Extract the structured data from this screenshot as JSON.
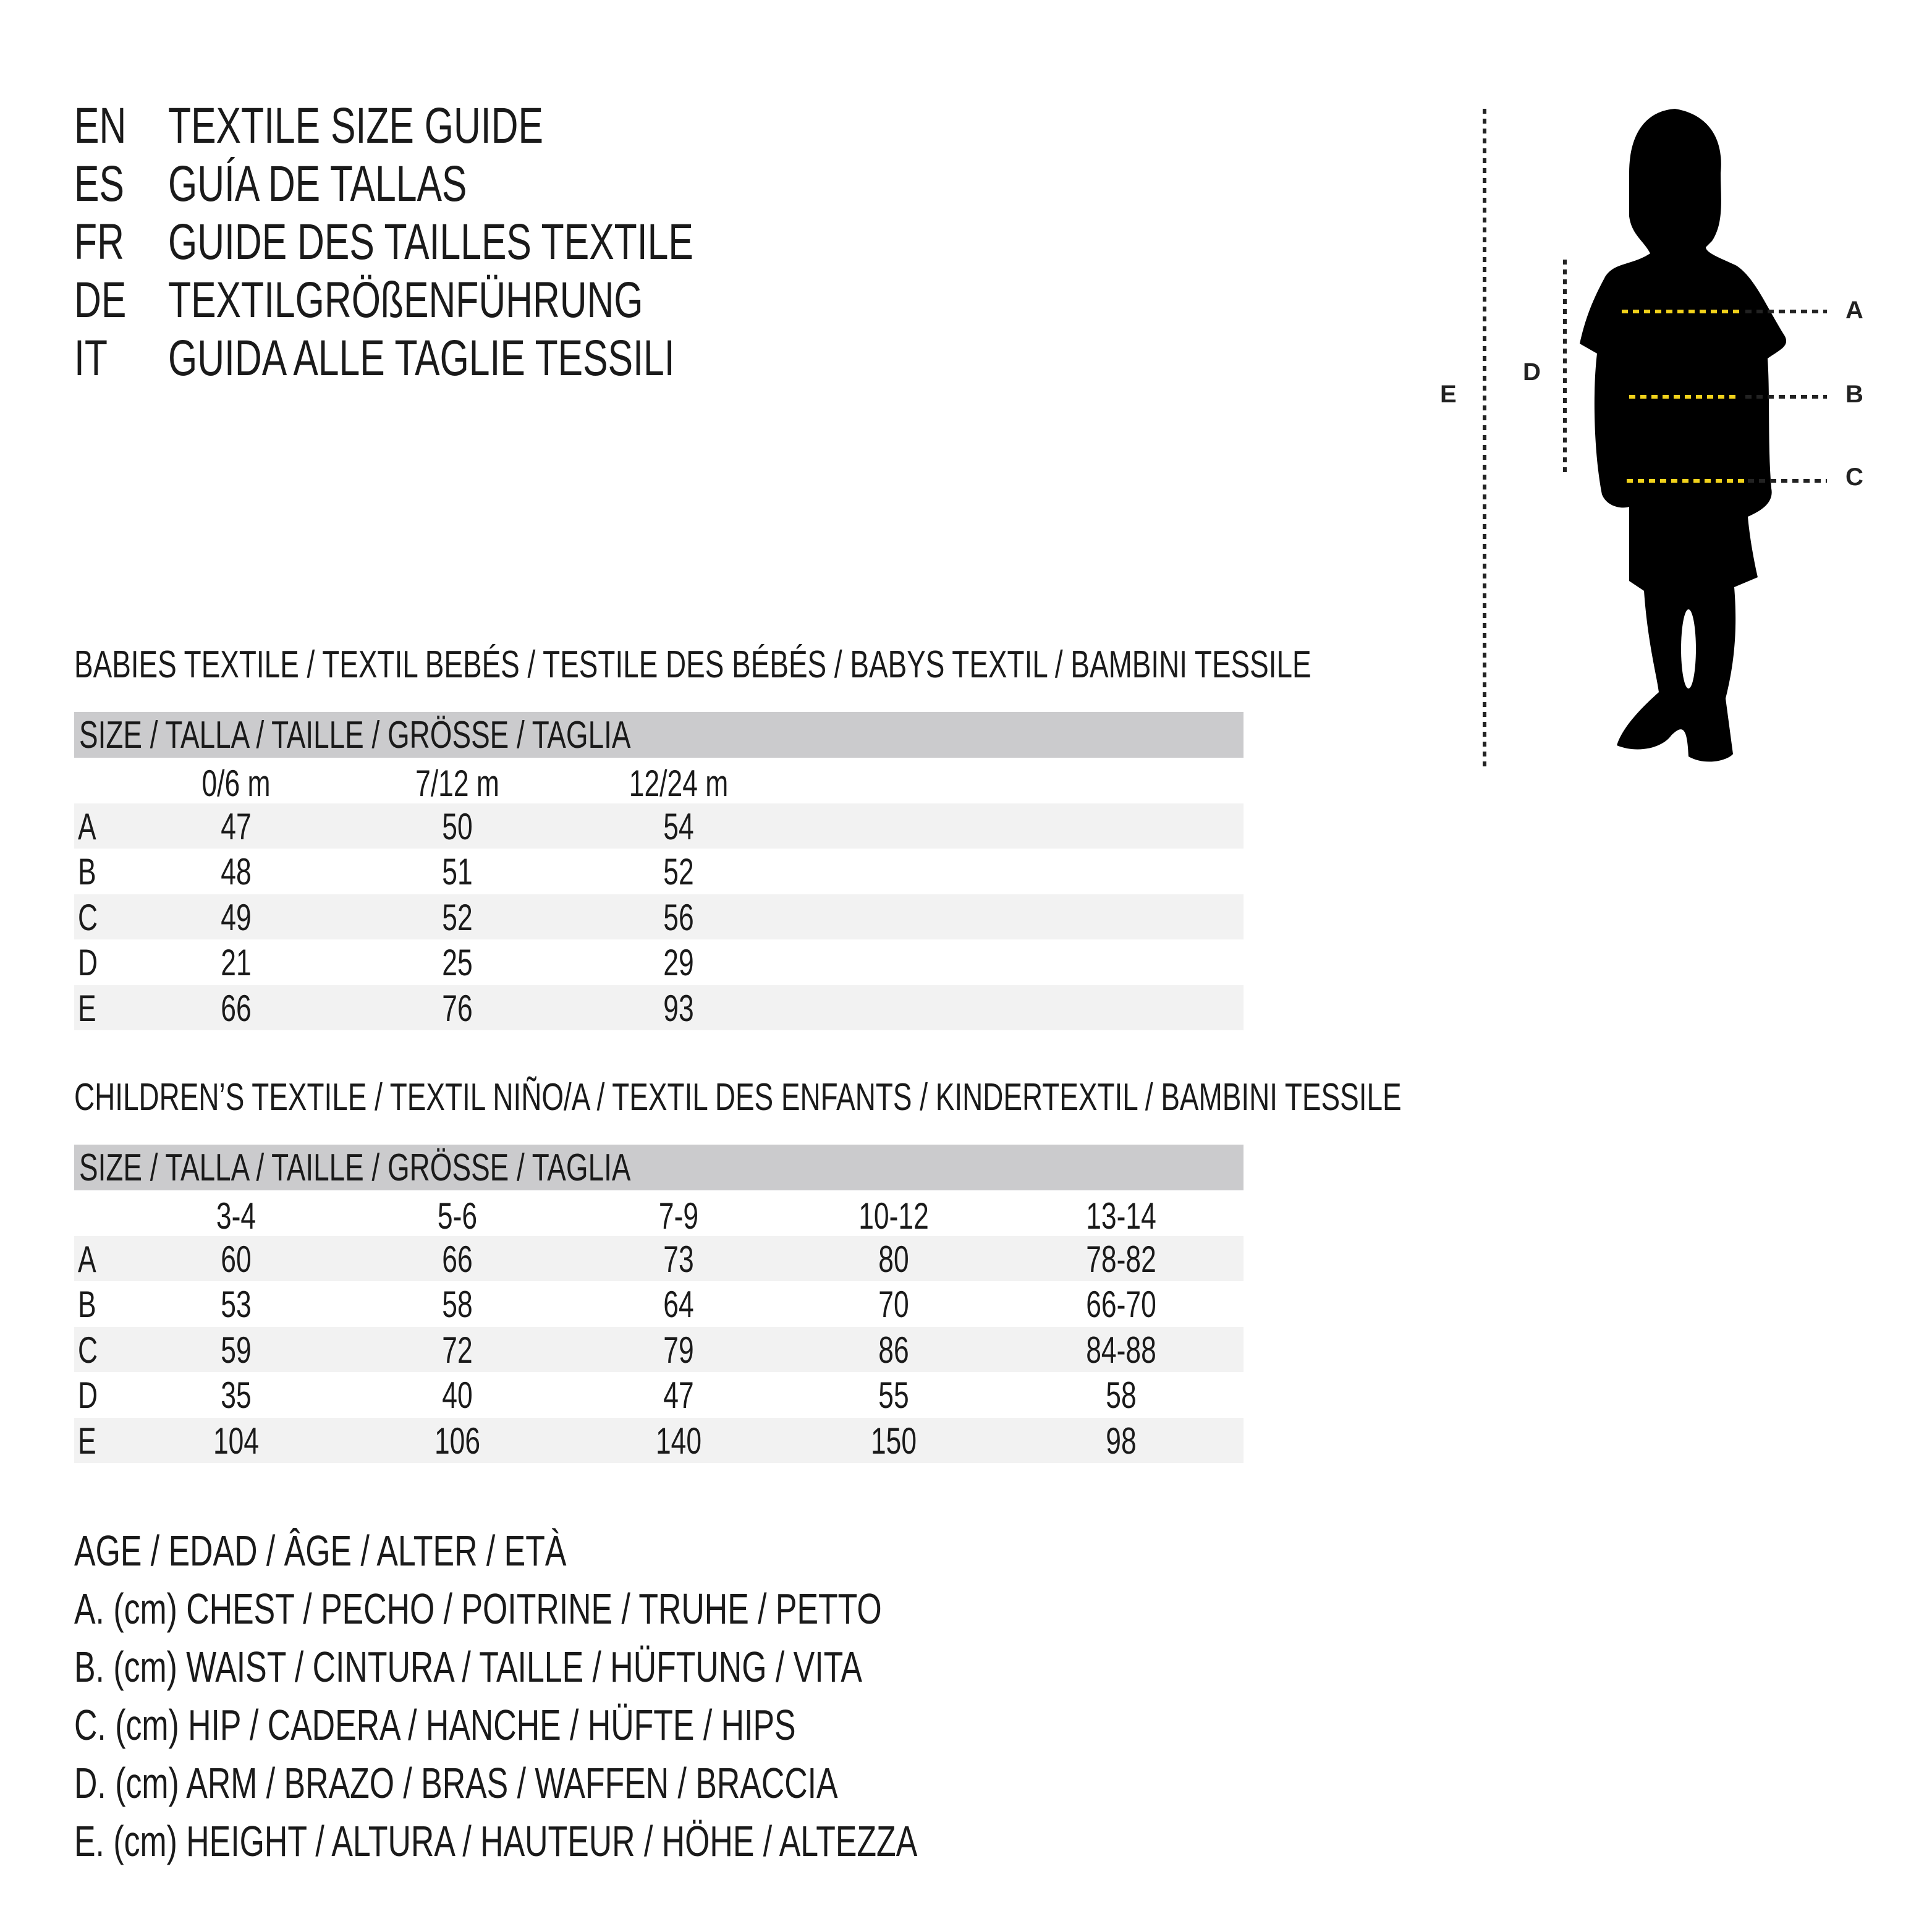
{
  "titles": [
    {
      "code": "EN",
      "text": "TEXTILE SIZE GUIDE"
    },
    {
      "code": "ES",
      "text": "GUÍA DE TALLAS"
    },
    {
      "code": "FR",
      "text": "GUIDE DES TAILLES TEXTILE"
    },
    {
      "code": "DE",
      "text": "TEXTILGRÖßENFÜHRUNG"
    },
    {
      "code": "IT",
      "text": "GUIDA ALLE TAGLIE TESSILI"
    }
  ],
  "babies": {
    "heading": "BABIES TEXTILE / TEXTIL BEBÉS / TESTILE DES BÉBÉS / BABYS TEXTIL / BAMBINI TESSILE",
    "size_header": "SIZE / TALLA / TAILLE / GRÖSSE / TAGLIA",
    "columns": [
      "0/6 m",
      "7/12 m",
      "12/24 m"
    ],
    "rows": [
      {
        "label": "A",
        "values": [
          "47",
          "50",
          "54"
        ]
      },
      {
        "label": "B",
        "values": [
          "48",
          "51",
          "52"
        ]
      },
      {
        "label": "C",
        "values": [
          "49",
          "52",
          "56"
        ]
      },
      {
        "label": "D",
        "values": [
          "21",
          "25",
          "29"
        ]
      },
      {
        "label": "E",
        "values": [
          "66",
          "76",
          "93"
        ]
      }
    ]
  },
  "children": {
    "heading": "CHILDREN’S TEXTILE / TEXTIL NIÑO/A / TEXTIL DES ENFANTS / KINDERTEXTIL / BAMBINI TESSILE",
    "size_header": "SIZE / TALLA / TAILLE / GRÖSSE / TAGLIA",
    "columns": [
      "3-4",
      "5-6",
      "7-9",
      "10-12",
      "13-14"
    ],
    "rows": [
      {
        "label": "A",
        "values": [
          "60",
          "66",
          "73",
          "80",
          "78-82"
        ]
      },
      {
        "label": "B",
        "values": [
          "53",
          "58",
          "64",
          "70",
          "66-70"
        ]
      },
      {
        "label": "C",
        "values": [
          "59",
          "72",
          "79",
          "86",
          "84-88"
        ]
      },
      {
        "label": "D",
        "values": [
          "35",
          "40",
          "47",
          "55",
          "58"
        ]
      },
      {
        "label": "E",
        "values": [
          "104",
          "106",
          "140",
          "150",
          "98"
        ]
      }
    ]
  },
  "legend": {
    "age": "AGE / EDAD / ÂGE / ALTER / ETÀ",
    "items": [
      "A. (cm) CHEST / PECHO / POITRINE / TRUHE / PETTO",
      "B. (cm) WAIST / CINTURA / TAILLE / HÜFTUNG / VITA",
      "C. (cm) HIP / CADERA / HANCHE / HÜFTE / HIPS",
      "D. (cm) ARM / BRAZO / BRAS / WAFFEN / BRACCIA",
      "E. (cm) HEIGHT / ALTURA / HAUTEUR / HÖHE / ALTEZZA"
    ]
  },
  "figure": {
    "labels": {
      "a": "A",
      "b": "B",
      "c": "C",
      "d": "D",
      "e": "E"
    },
    "silhouette_color": "#000000",
    "measure_line_color": "#f2d21b",
    "guide_line_color": "#222222"
  },
  "colors": {
    "header_bar": "#cbcbcd",
    "row_shade": "#f2f2f2"
  }
}
